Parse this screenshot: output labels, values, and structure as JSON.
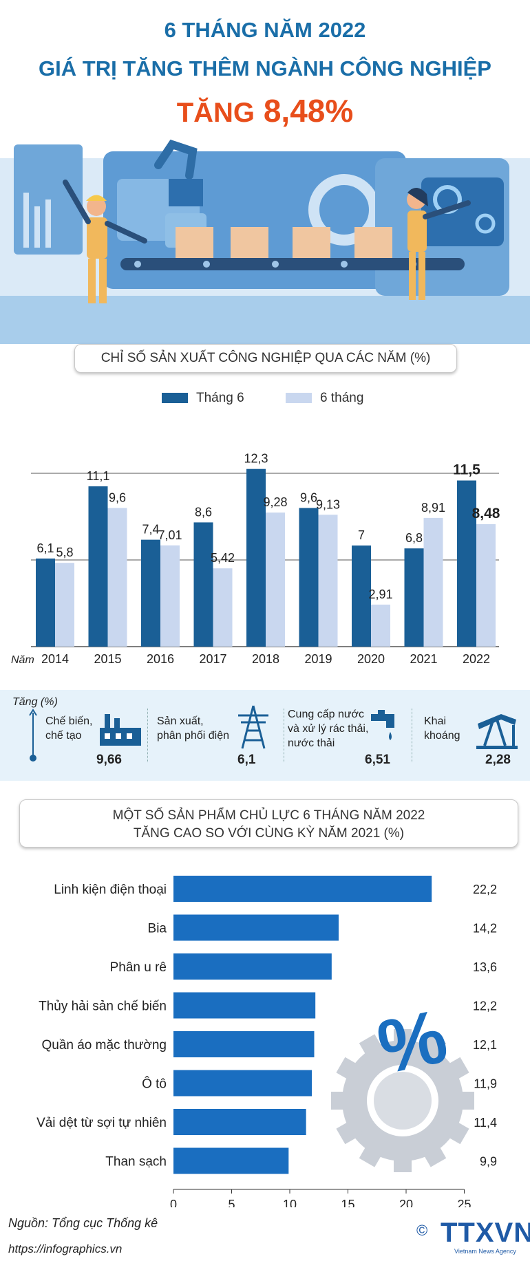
{
  "header": {
    "line1": "6 THÁNG NĂM 2022",
    "line2": "GIÁ TRỊ TĂNG THÊM NGÀNH CÔNG NGHIỆP",
    "line3_word": "TĂNG",
    "line3_value": "8,48%"
  },
  "chart_data": [
    {
      "type": "bar",
      "title": "CHỈ SỐ SẢN XUẤT CÔNG NGHIỆP QUA CÁC NĂM (%)",
      "xlabel": "Năm",
      "categories": [
        "2014",
        "2015",
        "2016",
        "2017",
        "2018",
        "2019",
        "2020",
        "2021",
        "2022"
      ],
      "series": [
        {
          "name": "Tháng 6",
          "values": [
            6.1,
            11.1,
            7.4,
            8.6,
            12.3,
            9.6,
            7,
            6.8,
            11.5
          ],
          "labels": [
            "6,1",
            "11,1",
            "7,4",
            "8,6",
            "12,3",
            "9,6",
            "7",
            "6,8",
            "11,5"
          ]
        },
        {
          "name": "6 tháng",
          "values": [
            5.8,
            9.6,
            7.01,
            5.42,
            9.28,
            9.13,
            2.91,
            8.91,
            8.48
          ],
          "labels": [
            "5,8",
            "9,6",
            "7,01",
            "5,42",
            "9,28",
            "9,13",
            "2,91",
            "8,91",
            "8,48"
          ]
        }
      ],
      "colors": [
        "#1a5f96",
        "#c9d7ef"
      ],
      "grid": true,
      "legend": "top-center"
    },
    {
      "type": "bar",
      "orientation": "horizontal",
      "title": "MỘT SỐ SẢN PHẨM CHỦ LỰC 6 THÁNG NĂM 2022 TĂNG CAO SO VỚI CÙNG KỲ NĂM 2021 (%)",
      "title_line1": "MỘT SỐ SẢN PHẨM CHỦ LỰC 6 THÁNG NĂM 2022",
      "title_line2": "TĂNG CAO SO VỚI CÙNG KỲ NĂM 2021 (%)",
      "categories": [
        "Linh kiện điện thoại",
        "Bia",
        "Phân u rê",
        "Thủy hải sản chế biến",
        "Quần áo mặc thường",
        "Ô tô",
        "Vải dệt từ sợi tự nhiên",
        "Than sạch"
      ],
      "values": [
        22.2,
        14.2,
        13.6,
        12.2,
        12.1,
        11.9,
        11.4,
        9.9
      ],
      "labels": [
        "22,2",
        "14,2",
        "13,6",
        "12,2",
        "12,1",
        "11,9",
        "11,4",
        "9,9"
      ],
      "xlim": [
        0,
        25
      ],
      "xticks": [
        "0",
        "5",
        "10",
        "15",
        "20",
        "25"
      ],
      "color": "#1a6ec0"
    }
  ],
  "band": {
    "axis_label": "Tăng (%)",
    "items": [
      {
        "label1": "Chế biến,",
        "label2": "chế tạo",
        "label3": "",
        "value": "9,66",
        "icon": "factory-icon"
      },
      {
        "label1": "Sản xuất,",
        "label2": "phân phối điện",
        "label3": "",
        "value": "6,1",
        "icon": "power-tower-icon"
      },
      {
        "label1": "Cung cấp nước",
        "label2": "và xử lý rác thải,",
        "label3": "nước thải",
        "value": "6,51",
        "icon": "water-tap-icon"
      },
      {
        "label1": "Khai",
        "label2": "khoáng",
        "label3": "",
        "value": "2,28",
        "icon": "oil-pump-icon"
      }
    ]
  },
  "footer": {
    "source": "Nguồn: Tổng cục Thống kê",
    "url": "https://infographics.vn",
    "logo": "TTXVN",
    "logo_sub": "Vietnam News Agency",
    "copyright": "©"
  },
  "colors": {
    "title_blue": "#1a6ea8",
    "accent_orange": "#e84e1b"
  }
}
